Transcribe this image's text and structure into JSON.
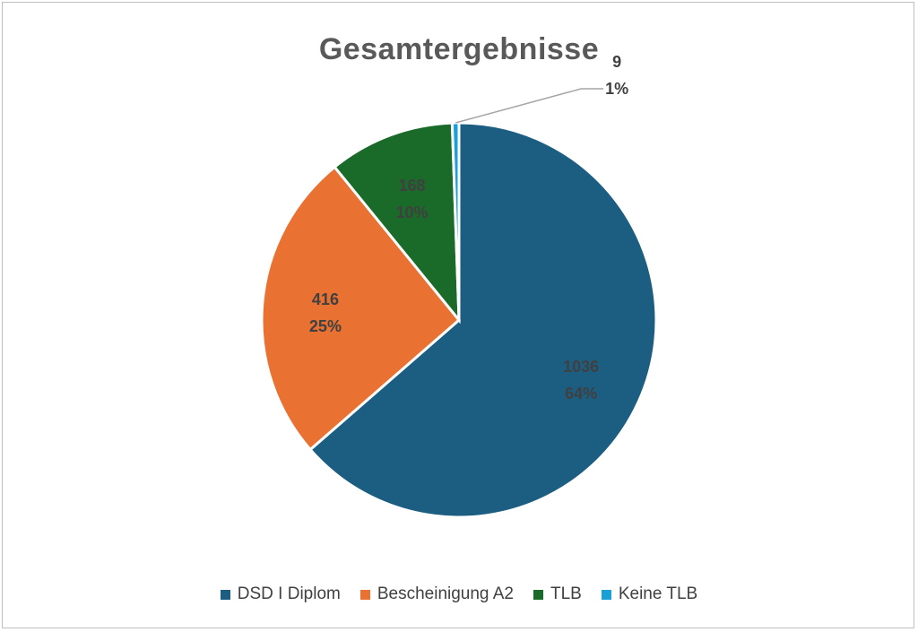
{
  "chart_data": {
    "type": "pie",
    "title": "Gesamtergebnisse",
    "categories": [
      "DSD I Diplom",
      "Bescheinigung A2",
      "TLB",
      "Keine TLB"
    ],
    "values": [
      1036,
      416,
      168,
      9
    ],
    "percent_labels": [
      "64%",
      "25%",
      "10%",
      "1%"
    ],
    "colors": [
      "#1b5e82",
      "#e97132",
      "#1a6b2a",
      "#1a9fd6"
    ],
    "legend_position": "bottom"
  }
}
